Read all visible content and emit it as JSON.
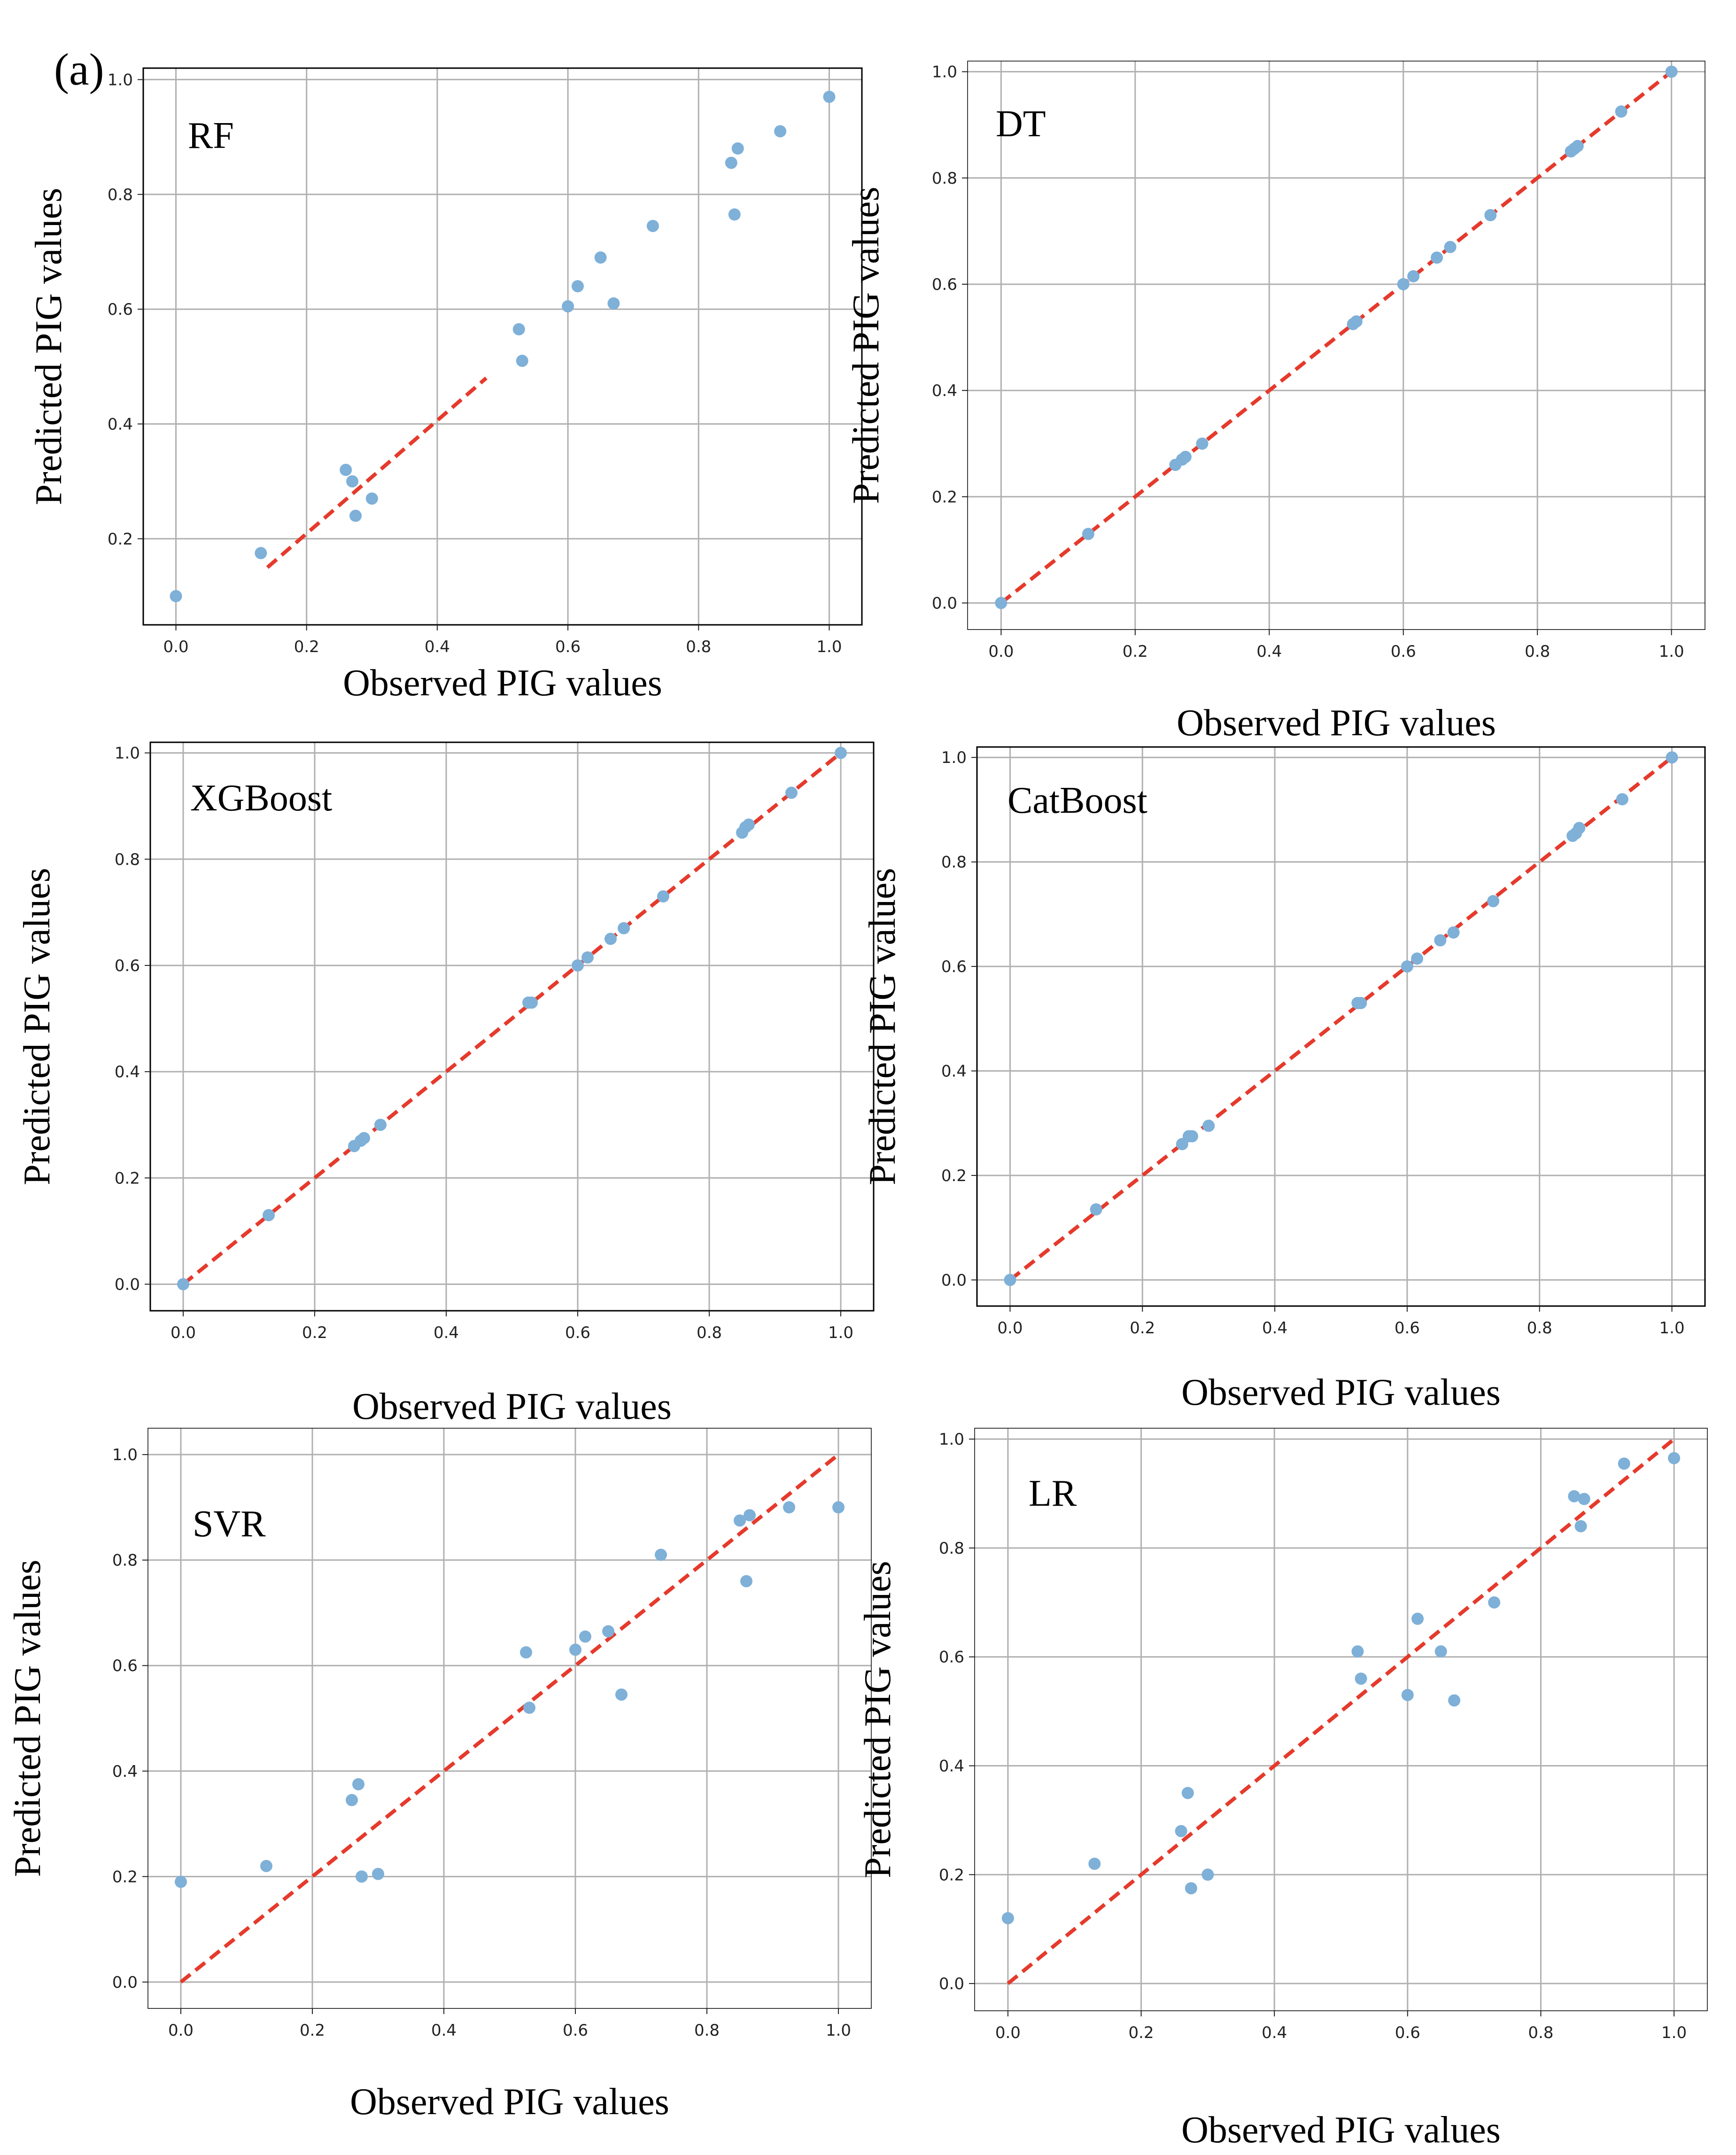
{
  "figure": {
    "panel_label": "(a)",
    "colors": {
      "points": "#7eb0d8",
      "reference_line": "#e53a2c",
      "grid": "#b0b0b0",
      "frame": "#000000"
    }
  },
  "chart_data": [
    {
      "type": "scatter",
      "title": "RF",
      "xlabel": "Observed PIG values",
      "ylabel": "Predicted PIG values",
      "xlim": [
        -0.05,
        1.05
      ],
      "ylim": [
        0.05,
        1.02
      ],
      "xticks": [
        0.0,
        0.2,
        0.4,
        0.6,
        0.8,
        1.0
      ],
      "yticks": [
        0.2,
        0.4,
        0.6,
        0.8,
        1.0
      ],
      "tick_labels_x": [
        "0.0",
        "0.2",
        "0.4",
        "0.6",
        "0.8",
        "1.0"
      ],
      "tick_labels_y": [
        "0.2",
        "0.4",
        "0.6",
        "0.8",
        "1.0"
      ],
      "grid": true,
      "reference_line": {
        "x": [
          0.14,
          0.475
        ],
        "y": [
          0.15,
          0.48
        ]
      },
      "points": {
        "x": [
          0.0,
          0.13,
          0.26,
          0.27,
          0.275,
          0.3,
          0.525,
          0.53,
          0.6,
          0.615,
          0.65,
          0.67,
          0.73,
          0.85,
          0.855,
          0.86,
          0.925,
          1.0
        ],
        "y": [
          0.1,
          0.175,
          0.32,
          0.3,
          0.24,
          0.27,
          0.565,
          0.51,
          0.605,
          0.64,
          0.69,
          0.61,
          0.745,
          0.855,
          0.765,
          0.88,
          0.91,
          0.97
        ]
      }
    },
    {
      "type": "scatter",
      "title": "DT",
      "xlabel": "Observed PIG values",
      "ylabel": "Predicted PIG values",
      "xlim": [
        -0.05,
        1.05
      ],
      "ylim": [
        -0.05,
        1.02
      ],
      "xticks": [
        0.0,
        0.2,
        0.4,
        0.6,
        0.8,
        1.0
      ],
      "yticks": [
        0.0,
        0.2,
        0.4,
        0.6,
        0.8,
        1.0
      ],
      "tick_labels_x": [
        "0.0",
        "0.2",
        "0.4",
        "0.6",
        "0.8",
        "1.0"
      ],
      "tick_labels_y": [
        "0.0",
        "0.2",
        "0.4",
        "0.6",
        "0.8",
        "1.0"
      ],
      "grid": true,
      "reference_line": {
        "x": [
          0.0,
          1.0
        ],
        "y": [
          0.0,
          1.0
        ]
      },
      "points": {
        "x": [
          0.0,
          0.13,
          0.26,
          0.27,
          0.275,
          0.3,
          0.525,
          0.53,
          0.6,
          0.615,
          0.65,
          0.67,
          0.73,
          0.85,
          0.855,
          0.86,
          0.925,
          1.0
        ],
        "y": [
          0.0,
          0.13,
          0.26,
          0.27,
          0.275,
          0.3,
          0.525,
          0.53,
          0.6,
          0.615,
          0.65,
          0.67,
          0.73,
          0.85,
          0.855,
          0.86,
          0.925,
          1.0
        ]
      }
    },
    {
      "type": "scatter",
      "title": "XGBoost",
      "xlabel": "Observed PIG values",
      "ylabel": "Predicted PIG values",
      "xlim": [
        -0.05,
        1.05
      ],
      "ylim": [
        -0.05,
        1.02
      ],
      "xticks": [
        0.0,
        0.2,
        0.4,
        0.6,
        0.8,
        1.0
      ],
      "yticks": [
        0.0,
        0.2,
        0.4,
        0.6,
        0.8,
        1.0
      ],
      "tick_labels_x": [
        "0.0",
        "0.2",
        "0.4",
        "0.6",
        "0.8",
        "1.0"
      ],
      "tick_labels_y": [
        "0.0",
        "0.2",
        "0.4",
        "0.6",
        "0.8",
        "1.0"
      ],
      "grid": true,
      "reference_line": {
        "x": [
          0.0,
          1.0
        ],
        "y": [
          0.0,
          1.0
        ]
      },
      "points": {
        "x": [
          0.0,
          0.13,
          0.26,
          0.27,
          0.275,
          0.3,
          0.525,
          0.53,
          0.6,
          0.615,
          0.65,
          0.67,
          0.73,
          0.85,
          0.855,
          0.86,
          0.925,
          1.0
        ],
        "y": [
          0.0,
          0.13,
          0.26,
          0.27,
          0.275,
          0.3,
          0.53,
          0.53,
          0.6,
          0.615,
          0.65,
          0.67,
          0.73,
          0.85,
          0.86,
          0.865,
          0.925,
          1.0
        ]
      }
    },
    {
      "type": "scatter",
      "title": "CatBoost",
      "xlabel": "Observed PIG values",
      "ylabel": "Predicted PIG values",
      "xlim": [
        -0.05,
        1.05
      ],
      "ylim": [
        -0.05,
        1.02
      ],
      "xticks": [
        0.0,
        0.2,
        0.4,
        0.6,
        0.8,
        1.0
      ],
      "yticks": [
        0.0,
        0.2,
        0.4,
        0.6,
        0.8,
        1.0
      ],
      "tick_labels_x": [
        "0.0",
        "0.2",
        "0.4",
        "0.6",
        "0.8",
        "1.0"
      ],
      "tick_labels_y": [
        "0.0",
        "0.2",
        "0.4",
        "0.6",
        "0.8",
        "1.0"
      ],
      "grid": true,
      "reference_line": {
        "x": [
          0.0,
          1.0
        ],
        "y": [
          0.0,
          1.0
        ]
      },
      "points": {
        "x": [
          0.0,
          0.13,
          0.26,
          0.27,
          0.275,
          0.3,
          0.525,
          0.53,
          0.6,
          0.615,
          0.65,
          0.67,
          0.73,
          0.85,
          0.855,
          0.86,
          0.925,
          1.0
        ],
        "y": [
          0.0,
          0.135,
          0.26,
          0.275,
          0.275,
          0.295,
          0.53,
          0.53,
          0.6,
          0.615,
          0.65,
          0.665,
          0.725,
          0.85,
          0.855,
          0.865,
          0.92,
          1.0
        ]
      }
    },
    {
      "type": "scatter",
      "title": "SVR",
      "xlabel": "Observed PIG values",
      "ylabel": "Predicted PIG values",
      "xlim": [
        -0.05,
        1.05
      ],
      "ylim": [
        -0.05,
        1.05
      ],
      "xticks": [
        0.0,
        0.2,
        0.4,
        0.6,
        0.8,
        1.0
      ],
      "yticks": [
        0.0,
        0.2,
        0.4,
        0.6,
        0.8,
        1.0
      ],
      "tick_labels_x": [
        "0.0",
        "0.2",
        "0.4",
        "0.6",
        "0.8",
        "1.0"
      ],
      "tick_labels_y": [
        "0.0",
        "0.2",
        "0.4",
        "0.6",
        "0.8",
        "1.0"
      ],
      "grid": true,
      "reference_line": {
        "x": [
          0.0,
          1.0
        ],
        "y": [
          0.0,
          1.0
        ]
      },
      "points": {
        "x": [
          0.0,
          0.13,
          0.26,
          0.27,
          0.275,
          0.3,
          0.525,
          0.53,
          0.6,
          0.615,
          0.65,
          0.67,
          0.73,
          0.85,
          0.86,
          0.865,
          0.925,
          1.0
        ],
        "y": [
          0.19,
          0.22,
          0.345,
          0.375,
          0.2,
          0.205,
          0.625,
          0.52,
          0.63,
          0.655,
          0.665,
          0.545,
          0.81,
          0.875,
          0.76,
          0.885,
          0.9,
          0.9
        ]
      }
    },
    {
      "type": "scatter",
      "title": "LR",
      "xlabel": "Observed PIG values",
      "ylabel": "Predicted PIG values",
      "xlim": [
        -0.05,
        1.05
      ],
      "ylim": [
        -0.05,
        1.02
      ],
      "xticks": [
        0.0,
        0.2,
        0.4,
        0.6,
        0.8,
        1.0
      ],
      "yticks": [
        0.0,
        0.2,
        0.4,
        0.6,
        0.8,
        1.0
      ],
      "tick_labels_x": [
        "0.0",
        "0.2",
        "0.4",
        "0.6",
        "0.8",
        "1.0"
      ],
      "tick_labels_y": [
        "0.0",
        "0.2",
        "0.4",
        "0.6",
        "0.8",
        "1.0"
      ],
      "grid": true,
      "reference_line": {
        "x": [
          0.0,
          1.0
        ],
        "y": [
          0.0,
          1.0
        ]
      },
      "points": {
        "x": [
          0.0,
          0.13,
          0.26,
          0.27,
          0.275,
          0.3,
          0.525,
          0.53,
          0.6,
          0.615,
          0.65,
          0.67,
          0.73,
          0.85,
          0.86,
          0.865,
          0.925,
          1.0
        ],
        "y": [
          0.12,
          0.22,
          0.28,
          0.35,
          0.175,
          0.2,
          0.61,
          0.56,
          0.53,
          0.67,
          0.61,
          0.52,
          0.7,
          0.895,
          0.84,
          0.89,
          0.955,
          0.965
        ]
      }
    }
  ]
}
